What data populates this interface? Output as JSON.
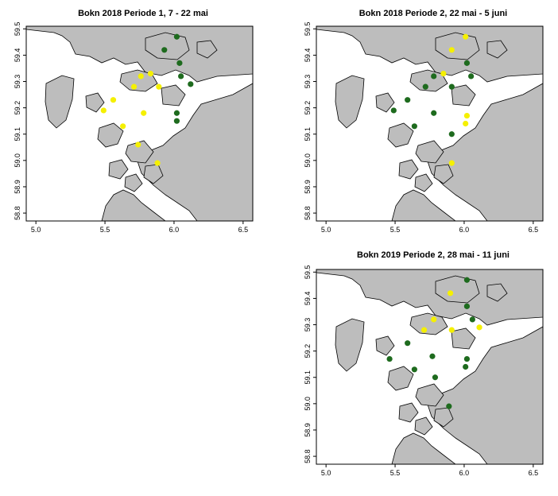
{
  "colors": {
    "sea": "#ffffff",
    "land": "#bdbdbd",
    "coast": "#000000",
    "green": "#1e6b1e",
    "yellow": "#f5f000"
  },
  "axes": {
    "x_ticks": [
      "5.0",
      "5.5",
      "6.0",
      "6.5"
    ],
    "y_ticks": [
      "59.5",
      "59.4",
      "59.3",
      "59.2",
      "59.1",
      "59.0",
      "58.9",
      "58.8"
    ],
    "xlim": [
      4.93,
      6.57
    ],
    "ylim": [
      58.77,
      59.51
    ]
  },
  "panels": [
    {
      "title": "Bokn 2018 Periode 1, 7 - 22 mai",
      "stations": [
        {
          "lon": 6.02,
          "lat": 59.47,
          "c": "green"
        },
        {
          "lon": 5.93,
          "lat": 59.42,
          "c": "green"
        },
        {
          "lon": 6.04,
          "lat": 59.37,
          "c": "green"
        },
        {
          "lon": 6.05,
          "lat": 59.32,
          "c": "green"
        },
        {
          "lon": 6.12,
          "lat": 59.29,
          "c": "green"
        },
        {
          "lon": 6.02,
          "lat": 59.18,
          "c": "green"
        },
        {
          "lon": 6.02,
          "lat": 59.15,
          "c": "green"
        },
        {
          "lon": 5.71,
          "lat": 59.28,
          "c": "yellow"
        },
        {
          "lon": 5.76,
          "lat": 59.32,
          "c": "yellow"
        },
        {
          "lon": 5.83,
          "lat": 59.33,
          "c": "yellow"
        },
        {
          "lon": 5.89,
          "lat": 59.28,
          "c": "yellow"
        },
        {
          "lon": 5.56,
          "lat": 59.23,
          "c": "yellow"
        },
        {
          "lon": 5.49,
          "lat": 59.19,
          "c": "yellow"
        },
        {
          "lon": 5.78,
          "lat": 59.18,
          "c": "yellow"
        },
        {
          "lon": 5.63,
          "lat": 59.13,
          "c": "yellow"
        },
        {
          "lon": 5.74,
          "lat": 59.06,
          "c": "yellow"
        },
        {
          "lon": 5.88,
          "lat": 58.99,
          "c": "yellow"
        }
      ]
    },
    {
      "title": "Bokn 2018 Periode 2, 22 mai - 5 juni",
      "stations": [
        {
          "lon": 6.01,
          "lat": 59.47,
          "c": "yellow"
        },
        {
          "lon": 5.91,
          "lat": 59.42,
          "c": "yellow"
        },
        {
          "lon": 6.02,
          "lat": 59.37,
          "c": "green"
        },
        {
          "lon": 6.05,
          "lat": 59.32,
          "c": "green"
        },
        {
          "lon": 5.78,
          "lat": 59.32,
          "c": "green"
        },
        {
          "lon": 5.85,
          "lat": 59.33,
          "c": "yellow"
        },
        {
          "lon": 5.72,
          "lat": 59.28,
          "c": "green"
        },
        {
          "lon": 5.91,
          "lat": 59.28,
          "c": "green"
        },
        {
          "lon": 5.59,
          "lat": 59.23,
          "c": "green"
        },
        {
          "lon": 5.49,
          "lat": 59.19,
          "c": "green"
        },
        {
          "lon": 5.78,
          "lat": 59.18,
          "c": "green"
        },
        {
          "lon": 6.02,
          "lat": 59.17,
          "c": "yellow"
        },
        {
          "lon": 6.01,
          "lat": 59.14,
          "c": "yellow"
        },
        {
          "lon": 5.64,
          "lat": 59.13,
          "c": "green"
        },
        {
          "lon": 5.91,
          "lat": 59.1,
          "c": "green"
        },
        {
          "lon": 5.91,
          "lat": 58.99,
          "c": "yellow"
        }
      ]
    },
    {
      "title": "Bokn 2019 Periode 2, 28 mai - 11 juni",
      "stations": [
        {
          "lon": 6.02,
          "lat": 59.47,
          "c": "green"
        },
        {
          "lon": 5.9,
          "lat": 59.42,
          "c": "yellow"
        },
        {
          "lon": 6.02,
          "lat": 59.37,
          "c": "green"
        },
        {
          "lon": 6.06,
          "lat": 59.32,
          "c": "green"
        },
        {
          "lon": 5.78,
          "lat": 59.32,
          "c": "yellow"
        },
        {
          "lon": 5.91,
          "lat": 59.28,
          "c": "yellow"
        },
        {
          "lon": 6.11,
          "lat": 59.29,
          "c": "yellow"
        },
        {
          "lon": 5.71,
          "lat": 59.28,
          "c": "yellow"
        },
        {
          "lon": 5.59,
          "lat": 59.23,
          "c": "green"
        },
        {
          "lon": 5.77,
          "lat": 59.18,
          "c": "green"
        },
        {
          "lon": 6.02,
          "lat": 59.17,
          "c": "green"
        },
        {
          "lon": 6.01,
          "lat": 59.14,
          "c": "green"
        },
        {
          "lon": 5.46,
          "lat": 59.17,
          "c": "green"
        },
        {
          "lon": 5.64,
          "lat": 59.13,
          "c": "green"
        },
        {
          "lon": 5.79,
          "lat": 59.1,
          "c": "green"
        },
        {
          "lon": 5.89,
          "lat": 58.99,
          "c": "green"
        }
      ]
    }
  ]
}
